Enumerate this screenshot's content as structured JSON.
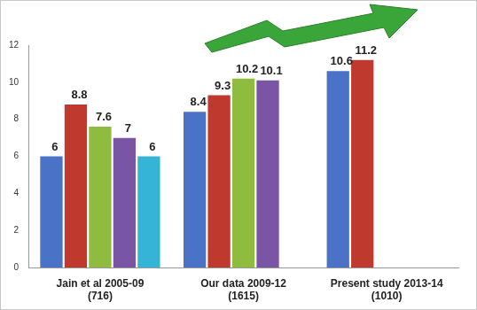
{
  "chart_data": {
    "type": "bar",
    "categories": [
      [
        "Jain et al 2005-09",
        "(716)"
      ],
      [
        "Our data 2009-12",
        "(1615)"
      ],
      [
        "Present study 2013-14",
        "(1010)"
      ]
    ],
    "series": [
      {
        "color": "#4a72c6",
        "values": [
          6,
          8.4,
          10.6
        ]
      },
      {
        "color": "#c0392f",
        "values": [
          8.8,
          9.3,
          11.2
        ]
      },
      {
        "color": "#8fbc3f",
        "values": [
          7.6,
          10.2,
          null
        ]
      },
      {
        "color": "#7a55a6",
        "values": [
          7,
          10.1,
          null
        ]
      },
      {
        "color": "#35b5d6",
        "values": [
          6,
          null,
          null
        ]
      }
    ],
    "ylim": [
      0,
      12
    ],
    "yticks": [
      0,
      2,
      4,
      6,
      8,
      10,
      12
    ],
    "grid": false,
    "data_labels": true
  }
}
